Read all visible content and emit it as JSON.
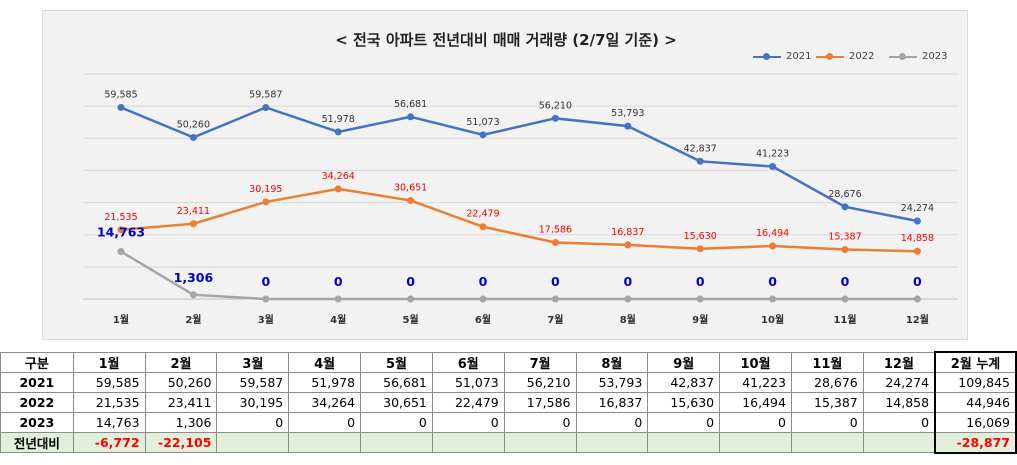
{
  "chart_data": {
    "type": "line",
    "title": "< 전국 아파트 전년대비 매매 거래량 (2/7일 기준) >",
    "categories": [
      "1월",
      "2월",
      "3월",
      "4월",
      "5월",
      "6월",
      "7월",
      "8월",
      "9월",
      "10월",
      "11월",
      "12월"
    ],
    "series": [
      {
        "name": "2021",
        "color": "#4472c4",
        "label_color": "#333333",
        "values": [
          59585,
          50260,
          59587,
          51978,
          56681,
          51073,
          56210,
          53793,
          42837,
          41223,
          28676,
          24274
        ],
        "labels": [
          "59,585",
          "50,260",
          "59,587",
          "51,978",
          "56,681",
          "51,073",
          "56,210",
          "53,793",
          "42,837",
          "41,223",
          "28,676",
          "24,274"
        ]
      },
      {
        "name": "2022",
        "color": "#ed7d31",
        "label_color": "#ff0000",
        "values": [
          21535,
          23411,
          30195,
          34264,
          30651,
          22479,
          17586,
          16837,
          15630,
          16494,
          15387,
          14858
        ],
        "labels": [
          "21,535",
          "23,411",
          "30,195",
          "34,264",
          "30,651",
          "22,479",
          "17,586",
          "16,837",
          "15,630",
          "16,494",
          "15,387",
          "14,858"
        ]
      },
      {
        "name": "2023",
        "color": "#a5a5a5",
        "label_color": "#0000cc",
        "values": [
          14763,
          1306,
          0,
          0,
          0,
          0,
          0,
          0,
          0,
          0,
          0,
          0
        ],
        "labels": [
          "14,763",
          "1,306",
          "0",
          "0",
          "0",
          "0",
          "0",
          "0",
          "0",
          "0",
          "0",
          "0"
        ]
      }
    ],
    "ylim": [
      0,
      70000
    ],
    "grid": true,
    "legend": "top-right"
  },
  "table": {
    "headers": [
      "구분",
      "1월",
      "2월",
      "3월",
      "4월",
      "5월",
      "6월",
      "7월",
      "8월",
      "9월",
      "10월",
      "11월",
      "12월",
      "2월 누계"
    ],
    "rows": [
      {
        "label": "2021",
        "cells": [
          "59,585",
          "50,260",
          "59,587",
          "51,978",
          "56,681",
          "51,073",
          "56,210",
          "53,793",
          "42,837",
          "41,223",
          "28,676",
          "24,274",
          "109,845"
        ]
      },
      {
        "label": "2022",
        "cells": [
          "21,535",
          "23,411",
          "30,195",
          "34,264",
          "30,651",
          "22,479",
          "17,586",
          "16,837",
          "15,630",
          "16,494",
          "15,387",
          "14,858",
          "44,946"
        ]
      },
      {
        "label": "2023",
        "cells": [
          "14,763",
          "1,306",
          "0",
          "0",
          "0",
          "0",
          "0",
          "0",
          "0",
          "0",
          "0",
          "0",
          "16,069"
        ]
      },
      {
        "label": "전년대비",
        "cells": [
          "-6,772",
          "-22,105",
          "",
          "",
          "",
          "",
          "",
          "",
          "",
          "",
          "",
          "",
          "-28,877"
        ]
      }
    ]
  }
}
